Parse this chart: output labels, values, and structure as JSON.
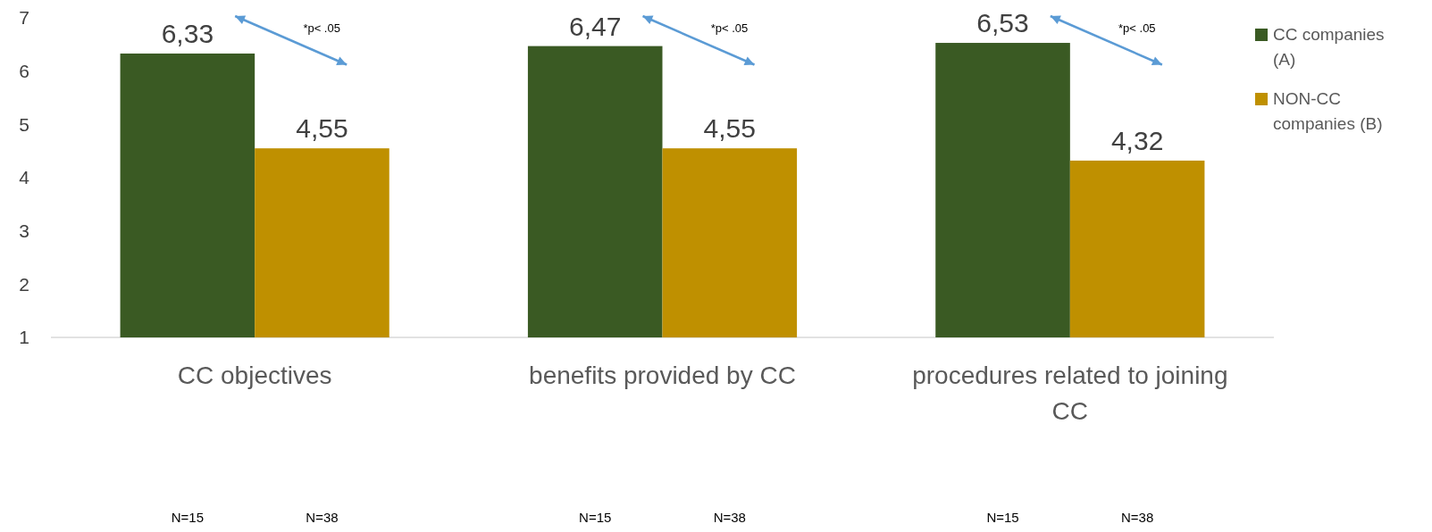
{
  "chart_data": {
    "type": "bar",
    "categories": [
      "CC objectives",
      "benefits provided by CC",
      "procedures related to joining CC"
    ],
    "series": [
      {
        "name": "CC companies (A)",
        "color": "#3a5a23",
        "values": [
          6.33,
          6.47,
          6.53
        ],
        "value_labels": [
          "6,33",
          "6,47",
          "6,53"
        ]
      },
      {
        "name": "NON-CC companies (B)",
        "color": "#bf9000",
        "values": [
          4.55,
          4.55,
          4.32
        ],
        "value_labels": [
          "4,55",
          "4,55",
          "4,32"
        ]
      }
    ],
    "ylim": [
      1,
      7
    ],
    "yticks": [
      1,
      2,
      3,
      4,
      5,
      6,
      7
    ],
    "grid": false,
    "legend": "right",
    "annotations": [
      "*p< .05",
      "*p< .05",
      "*p< .05",
      "N=15",
      "N=38",
      "N=15",
      "N=38",
      "N=15",
      "N=38"
    ]
  }
}
